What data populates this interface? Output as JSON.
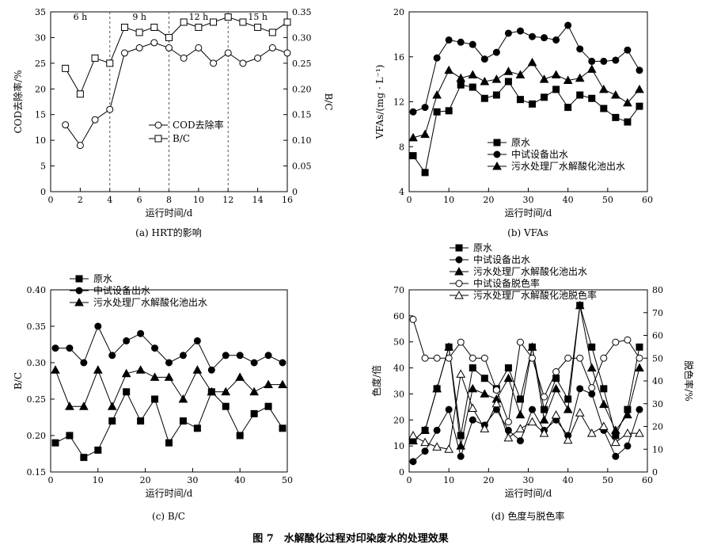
{
  "figure_caption": "图 7　水解酸化过程对印染废水的处理效果",
  "chart_data": [
    {
      "id": "a",
      "type": "line",
      "caption": "(a) HRT的影响",
      "xlabel": "运行时间/d",
      "ylabel": "COD去除率/%",
      "y2label": "B/C",
      "xlim": [
        0,
        16
      ],
      "xticks": [
        0,
        2,
        4,
        6,
        8,
        10,
        12,
        14,
        16
      ],
      "ylim": [
        0,
        35
      ],
      "yticks": [
        0,
        5,
        10,
        15,
        20,
        25,
        30,
        35
      ],
      "y2lim": [
        0,
        0.35
      ],
      "y2ticks": [
        "0",
        "0.05",
        "0.10",
        "0.15",
        "0.20",
        "0.25",
        "0.30",
        "0.35"
      ],
      "phases": [
        {
          "label": "6 h",
          "x_center": 2
        },
        {
          "label": "9 h",
          "x_center": 6
        },
        {
          "label": "12 h",
          "x_center": 10
        },
        {
          "label": "15 h",
          "x_center": 14
        }
      ],
      "phase_boundaries": [
        4,
        8,
        12
      ],
      "x": [
        1,
        2,
        3,
        4,
        5,
        6,
        7,
        8,
        9,
        10,
        11,
        12,
        13,
        14,
        15,
        16
      ],
      "series": [
        {
          "name": "COD去除率",
          "marker": "circle-open",
          "axis": "left",
          "values": [
            13,
            9,
            14,
            16,
            27,
            28,
            29,
            28,
            26,
            28,
            25,
            27,
            25,
            26,
            28,
            27
          ]
        },
        {
          "name": "B/C",
          "marker": "square-open",
          "axis": "right",
          "values": [
            0.24,
            0.19,
            0.26,
            0.25,
            0.32,
            0.31,
            0.32,
            0.3,
            0.33,
            0.32,
            0.33,
            0.34,
            0.33,
            0.32,
            0.31,
            0.33
          ]
        }
      ]
    },
    {
      "id": "b",
      "type": "line",
      "caption": "(b) VFAs",
      "xlabel": "运行时间/d",
      "ylabel": "VFAs/(mg · L⁻¹)",
      "xlim": [
        0,
        60
      ],
      "xticks": [
        0,
        10,
        20,
        30,
        40,
        50,
        60
      ],
      "ylim": [
        4,
        20
      ],
      "yticks": [
        4,
        8,
        12,
        16,
        20
      ],
      "x": [
        1,
        4,
        7,
        10,
        13,
        16,
        19,
        22,
        25,
        28,
        31,
        34,
        37,
        40,
        43,
        46,
        49,
        52,
        55,
        58
      ],
      "series": [
        {
          "name": "原水",
          "marker": "square-filled",
          "values": [
            7.2,
            5.7,
            11.1,
            11.2,
            13.5,
            13.3,
            12.3,
            12.6,
            13.8,
            12.2,
            11.8,
            12.4,
            13.1,
            11.5,
            12.6,
            12.3,
            11.4,
            10.6,
            10.2,
            11.6
          ]
        },
        {
          "name": "中试设备出水",
          "marker": "circle-filled",
          "values": [
            11.1,
            11.5,
            15.9,
            17.5,
            17.3,
            17.1,
            15.8,
            16.4,
            18.1,
            18.3,
            17.8,
            17.7,
            17.5,
            18.8,
            16.7,
            15.6,
            15.6,
            15.7,
            16.6,
            14.8
          ]
        },
        {
          "name": "污水处理厂水解酸化池出水",
          "marker": "triangle-filled",
          "values": [
            8.8,
            9.1,
            12.6,
            14.8,
            14.1,
            14.4,
            13.8,
            14.0,
            14.7,
            14.4,
            15.5,
            14.0,
            14.4,
            13.9,
            14.1,
            14.9,
            13.1,
            12.6,
            11.9,
            13.1
          ]
        }
      ]
    },
    {
      "id": "c",
      "type": "line",
      "caption": "(c) B/C",
      "xlabel": "运行时间/d",
      "ylabel": "B/C",
      "xlim": [
        0,
        50
      ],
      "xticks": [
        0,
        10,
        20,
        30,
        40,
        50
      ],
      "ylim": [
        0.15,
        0.4
      ],
      "yticks": [
        "0.15",
        "0.20",
        "0.25",
        "0.30",
        "0.35",
        "0.40"
      ],
      "x": [
        1,
        4,
        7,
        10,
        13,
        16,
        19,
        22,
        25,
        28,
        31,
        34,
        37,
        40,
        43,
        46,
        49
      ],
      "series": [
        {
          "name": "原水",
          "marker": "square-filled",
          "values": [
            0.19,
            0.2,
            0.17,
            0.18,
            0.22,
            0.26,
            0.22,
            0.25,
            0.19,
            0.22,
            0.21,
            0.26,
            0.24,
            0.2,
            0.23,
            0.24,
            0.21
          ]
        },
        {
          "name": "中试设备出水",
          "marker": "circle-filled",
          "values": [
            0.32,
            0.32,
            0.3,
            0.35,
            0.31,
            0.33,
            0.34,
            0.32,
            0.3,
            0.31,
            0.33,
            0.29,
            0.31,
            0.31,
            0.3,
            0.31,
            0.3
          ]
        },
        {
          "name": "污水处理厂水解酸化池出水",
          "marker": "triangle-filled",
          "values": [
            0.29,
            0.24,
            0.24,
            0.29,
            0.24,
            0.285,
            0.29,
            0.28,
            0.28,
            0.25,
            0.29,
            0.26,
            0.26,
            0.28,
            0.26,
            0.27,
            0.27
          ]
        }
      ]
    },
    {
      "id": "d",
      "type": "line",
      "caption": "(d) 色度与脱色率",
      "xlabel": "运行时间/d",
      "ylabel": "色度/倍",
      "y2label": "脱色率/%",
      "xlim": [
        0,
        60
      ],
      "xticks": [
        0,
        10,
        20,
        30,
        40,
        50,
        60
      ],
      "ylim": [
        0,
        70
      ],
      "yticks": [
        0,
        10,
        20,
        30,
        40,
        50,
        60,
        70
      ],
      "y2lim": [
        0,
        80
      ],
      "y2ticks": [
        "0",
        "10",
        "20",
        "30",
        "40",
        "50",
        "60",
        "70",
        "80"
      ],
      "x": [
        1,
        4,
        7,
        10,
        13,
        16,
        19,
        22,
        25,
        28,
        31,
        34,
        37,
        40,
        43,
        46,
        49,
        52,
        55,
        58
      ],
      "series": [
        {
          "name": "原水",
          "marker": "square-filled",
          "axis": "left",
          "values": [
            12,
            16,
            32,
            48,
            14,
            40,
            36,
            32,
            40,
            28,
            48,
            24,
            36,
            28,
            64,
            48,
            32,
            14,
            24,
            48
          ]
        },
        {
          "name": "中试设备出水",
          "marker": "circle-filled",
          "axis": "left",
          "values": [
            4,
            8,
            16,
            24,
            6,
            20,
            18,
            24,
            16,
            12,
            24,
            16,
            20,
            14,
            32,
            30,
            16,
            6,
            10,
            24
          ]
        },
        {
          "name": "污水处理厂水解酸化池出水",
          "marker": "triangle-filled",
          "axis": "left",
          "values": [
            12,
            16,
            32,
            48,
            10,
            32,
            30,
            28,
            36,
            22,
            48,
            20,
            32,
            24,
            64,
            40,
            26,
            16,
            22,
            40
          ]
        },
        {
          "name": "中试设备脱色率",
          "marker": "circle-open",
          "axis": "right",
          "values": [
            67,
            50,
            50,
            50,
            57,
            50,
            50,
            36,
            22,
            57,
            50,
            33,
            44,
            50,
            50,
            37,
            50,
            57,
            58,
            50
          ]
        },
        {
          "name": "污水处理厂水解酸化池脱色率",
          "marker": "triangle-open",
          "axis": "right",
          "values": [
            16,
            13,
            11,
            10,
            43,
            28,
            19,
            30,
            15,
            19,
            22,
            17,
            25,
            14,
            26,
            17,
            20,
            13,
            17,
            17
          ]
        }
      ]
    }
  ]
}
